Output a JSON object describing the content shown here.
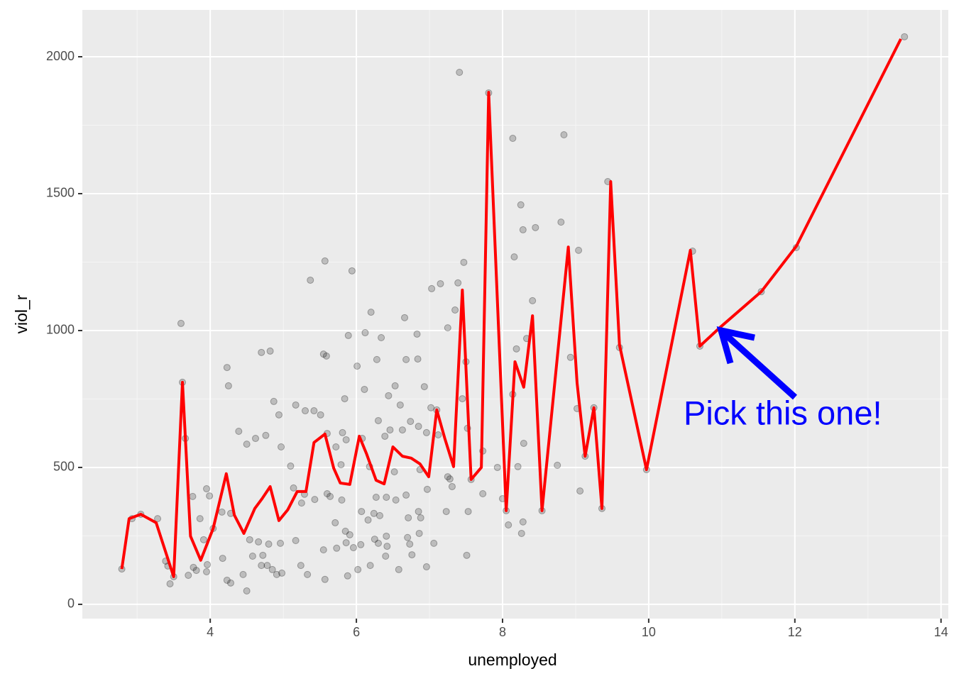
{
  "chart_data": {
    "type": "scatter",
    "x_label": "unemployed",
    "y_label": "viol_r",
    "xlim": [
      2.25,
      14.1
    ],
    "ylim": [
      -52,
      2171
    ],
    "xticks": [
      4,
      6,
      8,
      10,
      12,
      14
    ],
    "yticks": [
      0,
      500,
      1000,
      1500,
      2000
    ],
    "grid": true,
    "series": [
      {
        "type": "scatter",
        "color": "#000000",
        "x": [
          7.41,
          7.81,
          8.14,
          8.84,
          9.44,
          8.25,
          8.28,
          8.45,
          8.8,
          9.04,
          10.6,
          12.02,
          13.5,
          5.57,
          5.94,
          5.37,
          3.6,
          7.47,
          7.39,
          7.03,
          7.15,
          7.25,
          7.35,
          8.16,
          8.41,
          6.2,
          6.66,
          6.12,
          5.89,
          6.34,
          6.83,
          8.19,
          8.33,
          4.7,
          4.82,
          5.55,
          5.59,
          6.01,
          6.28,
          6.68,
          6.84,
          8.93,
          4.23,
          4.25,
          7.5,
          10.7,
          9.6,
          6.11,
          5.84,
          6.44,
          6.53,
          6.93,
          7.45,
          6.6,
          5.17,
          4.87,
          8.14,
          9.02,
          7.02,
          5.3,
          5.42,
          5.51,
          4.94,
          6.3,
          6.74,
          6.85,
          6.63,
          6.96,
          7.52,
          4.39,
          4.62,
          4.76,
          5.6,
          5.81,
          5.86,
          6.08,
          6.46,
          6.39,
          3.66,
          5.72,
          4.97,
          4.5,
          7.12,
          8.29,
          7.73,
          8.75,
          8.21,
          5.1,
          5.79,
          6.18,
          6.87,
          6.52,
          7.25,
          7.31,
          7.28,
          7.57,
          6.97,
          3.95,
          5.14,
          5.29,
          5.6,
          5.64,
          6.68,
          6.27,
          6.41,
          8.0,
          6.54,
          3.76,
          3.99,
          5.43,
          5.8,
          7.73,
          9.06,
          5.25,
          4.16,
          3.86,
          2.93,
          3.28,
          4.28,
          6.07,
          6.24,
          6.32,
          6.85,
          7.23,
          7.53,
          8.05,
          8.54,
          9.36,
          6.16,
          6.71,
          6.88,
          8.28,
          8.08,
          5.71,
          6.86,
          8.26,
          5.85,
          5.91,
          6.41,
          6.7,
          6.73,
          7.06,
          6.25,
          6.3,
          5.86,
          5.17,
          4.96,
          4.8,
          4.66,
          4.54,
          3.91,
          5.96,
          6.06,
          6.42,
          5.73,
          5.55,
          6.4,
          6.76,
          7.51,
          4.72,
          4.58,
          4.17,
          3.39,
          3.42,
          3.77,
          3.96,
          3.95,
          4.7,
          4.78,
          4.85,
          4.91,
          4.98,
          5.24,
          6.19,
          6.58,
          6.96,
          5.33,
          5.88,
          6.02,
          4.45,
          3.81,
          3.7,
          5.57,
          4.23,
          4.28,
          4.5,
          3.45,
          2.79,
          3.05,
          3.5,
          3.62,
          4.04,
          9.97,
          11.54,
          9.13,
          9.25,
          7.1,
          7.93
        ],
        "values": [
          1943,
          1868,
          1702,
          1715,
          1544,
          1459,
          1368,
          1376,
          1396,
          1293,
          1290,
          1303,
          2073,
          1254,
          1218,
          1184,
          1026,
          1249,
          1174,
          1153,
          1171,
          1010,
          1075,
          1269,
          1109,
          1067,
          1047,
          992,
          982,
          974,
          987,
          933,
          971,
          920,
          925,
          914,
          907,
          870,
          894,
          894,
          896,
          902,
          865,
          798,
          886,
          943,
          938,
          785,
          751,
          762,
          798,
          795,
          751,
          728,
          728,
          741,
          767,
          715,
          718,
          707,
          707,
          692,
          692,
          671,
          668,
          650,
          637,
          627,
          643,
          632,
          606,
          617,
          624,
          627,
          601,
          606,
          637,
          614,
          606,
          575,
          575,
          585,
          619,
          588,
          560,
          508,
          503,
          505,
          510,
          503,
          492,
          484,
          466,
          430,
          458,
          456,
          420,
          422,
          425,
          402,
          404,
          394,
          399,
          391,
          391,
          386,
          381,
          394,
          396,
          383,
          381,
          404,
          414,
          370,
          337,
          313,
          313,
          313,
          332,
          339,
          332,
          324,
          339,
          339,
          339,
          342,
          342,
          350,
          308,
          316,
          316,
          301,
          290,
          298,
          259,
          259,
          267,
          254,
          249,
          244,
          220,
          223,
          238,
          223,
          225,
          233,
          223,
          220,
          228,
          236,
          236,
          207,
          218,
          212,
          205,
          199,
          176,
          181,
          179,
          179,
          176,
          168,
          158,
          140,
          135,
          145,
          119,
          142,
          142,
          127,
          109,
          114,
          142,
          142,
          127,
          137,
          109,
          104,
          127,
          109,
          124,
          106,
          91,
          88,
          78,
          49,
          75,
          129,
          329,
          101,
          811,
          277,
          492,
          1142,
          541,
          718,
          710,
          500
        ]
      },
      {
        "type": "line",
        "color": "#ff0000",
        "x": [
          2.79,
          2.89,
          3.05,
          3.26,
          3.5,
          3.62,
          3.73,
          3.87,
          4.04,
          4.22,
          4.33,
          4.46,
          4.61,
          4.71,
          4.82,
          4.94,
          5.06,
          5.19,
          5.31,
          5.42,
          5.57,
          5.69,
          5.78,
          5.91,
          6.04,
          6.14,
          6.27,
          6.38,
          6.5,
          6.63,
          6.75,
          6.87,
          6.99,
          7.1,
          7.21,
          7.33,
          7.45,
          7.57,
          7.71,
          7.81,
          8.05,
          8.17,
          8.29,
          8.41,
          8.54,
          8.9,
          9.02,
          9.13,
          9.25,
          9.36,
          9.48,
          9.6,
          9.97,
          10.57,
          10.7,
          10.97,
          11.54,
          12.02,
          13.45
        ],
        "values": [
          129,
          313,
          329,
          298,
          101,
          811,
          249,
          161,
          277,
          477,
          326,
          259,
          350,
          386,
          430,
          306,
          345,
          412,
          412,
          591,
          622,
          497,
          443,
          438,
          614,
          549,
          453,
          440,
          575,
          541,
          534,
          513,
          466,
          710,
          606,
          503,
          1148,
          456,
          500,
          1870,
          342,
          886,
          793,
          1054,
          342,
          1305,
          808,
          541,
          718,
          350,
          1544,
          948,
          492,
          1293,
          943,
          1010,
          1142,
          1308,
          2065
        ]
      }
    ],
    "annotations": [
      {
        "text": "Pick this one!",
        "color": "#0000ff"
      }
    ]
  }
}
